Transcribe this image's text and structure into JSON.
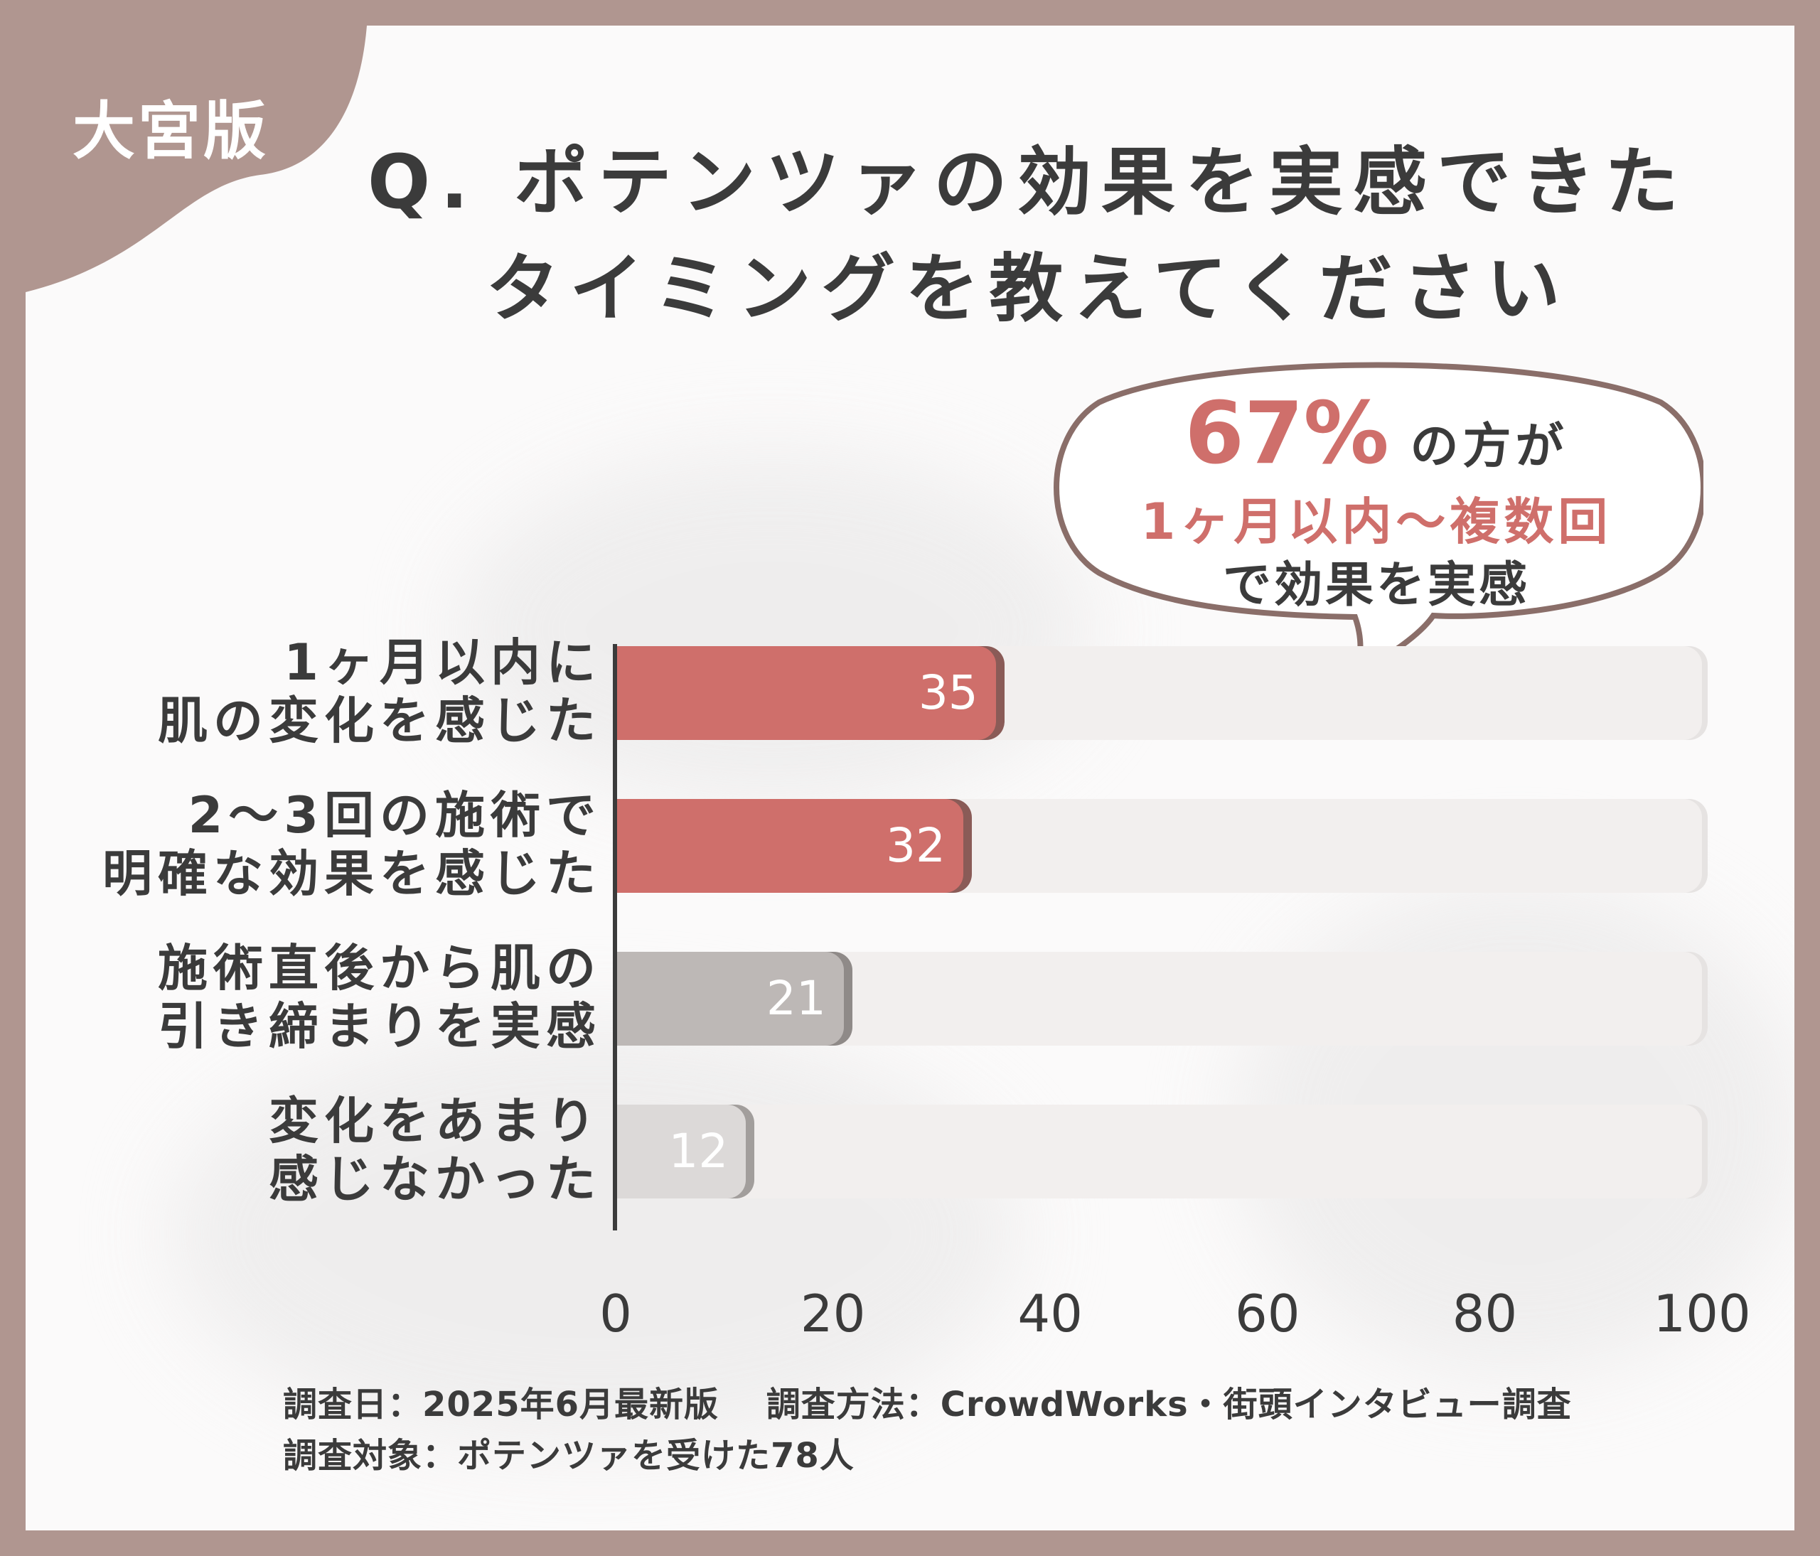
{
  "badge": "大宮版",
  "title_lines": [
    "Q. ポテンツァの効果を実感できた",
    "タイミングを教えてください"
  ],
  "callout": {
    "percent": "67%",
    "line1_rest": "の方が",
    "line2": "1ヶ月以内〜複数回",
    "line3": "で効果を実感"
  },
  "colors": {
    "highlight": "#cf6f6b",
    "highlight_shadow": "#8a5b57",
    "muted": "#bdb8b6",
    "muted_shadow": "#8f8a88",
    "light": "#dcd9d8",
    "light_shadow": "#a29e9c"
  },
  "chart_data": {
    "type": "bar",
    "orientation": "horizontal",
    "categories": [
      [
        "1ヶ月以内に",
        "肌の変化を感じた"
      ],
      [
        "2〜3回の施術で",
        "明確な効果を感じた"
      ],
      [
        "施術直後から肌の",
        "引き締まりを実感"
      ],
      [
        "変化をあまり",
        "感じなかった"
      ]
    ],
    "values": [
      35,
      32,
      21,
      12
    ],
    "value_labels": [
      "35",
      "32",
      "21",
      "12"
    ],
    "bar_styles": [
      "highlight",
      "highlight",
      "muted",
      "light"
    ],
    "xlim": [
      0,
      100
    ],
    "xticks": [
      "0",
      "20",
      "40",
      "60",
      "80",
      "100"
    ],
    "grid": false
  },
  "footnote": {
    "line1": "調査日：2025年6月最新版　 調査方法：CrowdWorks・街頭インタビュー調査",
    "line2": "調査対象：ポテンツァを受けた78人"
  }
}
